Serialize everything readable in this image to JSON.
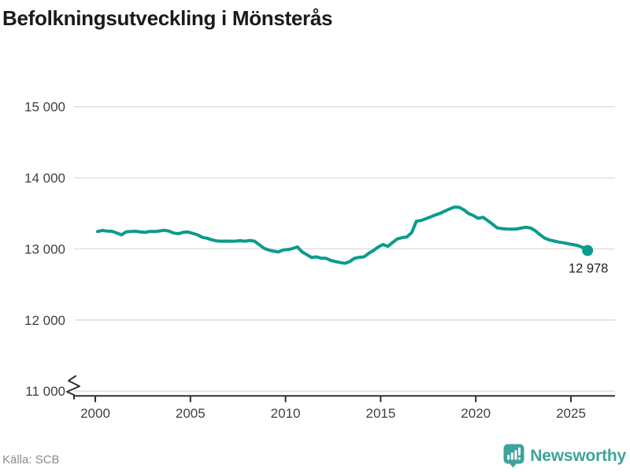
{
  "title": "Befolkningsutveckling i Mönsterås",
  "source": {
    "label": "Källa: SCB"
  },
  "branding": {
    "name": "Newsworthy",
    "icon": "newsworthy-pin-barchart-icon",
    "color": "#3da49b"
  },
  "colors": {
    "line": "#0c9b8d",
    "grid": "#dcdcdc",
    "axis": "#2f2f2f",
    "tick_text": "#3f3f3f",
    "title_text": "#1a1a1a",
    "annotation_text": "#1f1f1f",
    "source_text": "#8a8a8a"
  },
  "chart_data": {
    "type": "line",
    "title": "Befolkningsutveckling i Mönsterås",
    "xlabel": "",
    "ylabel": "",
    "ylim": [
      11000,
      15000
    ],
    "axis_break_below_min": true,
    "grid": "horizontal",
    "legend": "none",
    "y_ticks": [
      {
        "value": 11000,
        "label": "11 000"
      },
      {
        "value": 12000,
        "label": "12 000"
      },
      {
        "value": 13000,
        "label": "13 000"
      },
      {
        "value": 14000,
        "label": "14 000"
      },
      {
        "value": 15000,
        "label": "15 000"
      }
    ],
    "x_ticks": [
      {
        "value": 2000,
        "label": "2000"
      },
      {
        "value": 2005,
        "label": "2005"
      },
      {
        "value": 2010,
        "label": "2010"
      },
      {
        "value": 2015,
        "label": "2015"
      },
      {
        "value": 2020,
        "label": "2020"
      },
      {
        "value": 2025,
        "label": "2025"
      }
    ],
    "series": [
      {
        "name": "Befolkning i Mönsterås (kvartal)",
        "start_x": 2000.125,
        "step_x": 0.25,
        "values": [
          13245,
          13260,
          13250,
          13248,
          13225,
          13198,
          13240,
          13245,
          13248,
          13238,
          13232,
          13247,
          13243,
          13252,
          13262,
          13250,
          13222,
          13214,
          13233,
          13238,
          13218,
          13198,
          13162,
          13150,
          13128,
          13113,
          13108,
          13110,
          13108,
          13110,
          13115,
          13108,
          13118,
          13108,
          13058,
          13008,
          12983,
          12968,
          12958,
          12985,
          12990,
          13005,
          13028,
          12958,
          12918,
          12878,
          12888,
          12868,
          12868,
          12838,
          12822,
          12808,
          12798,
          12822,
          12868,
          12882,
          12888,
          12938,
          12978,
          13028,
          13062,
          13035,
          13090,
          13140,
          13158,
          13168,
          13228,
          13388,
          13400,
          13425,
          13450,
          13478,
          13500,
          13532,
          13562,
          13588,
          13585,
          13548,
          13498,
          13468,
          13430,
          13445,
          13398,
          13348,
          13295,
          13285,
          13280,
          13278,
          13280,
          13292,
          13305,
          13293,
          13255,
          13200,
          13150,
          13125,
          13110,
          13095,
          13085,
          13072,
          13060,
          13045,
          13020,
          12978
        ]
      }
    ],
    "last_point": {
      "value": 12978,
      "label": "12 978"
    }
  }
}
